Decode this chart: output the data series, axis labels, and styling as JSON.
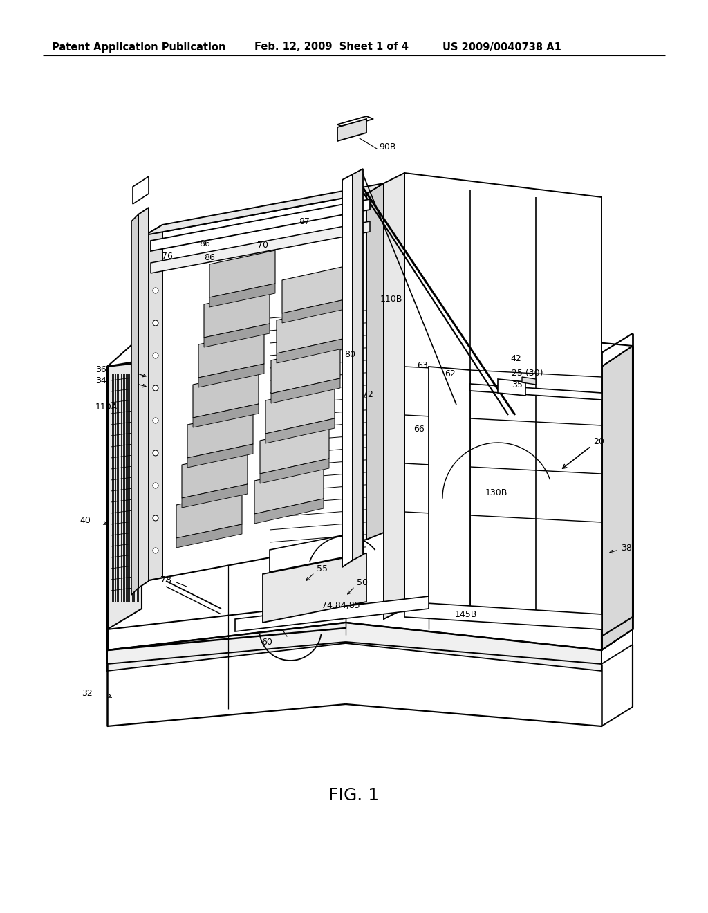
{
  "bg": "#ffffff",
  "header_left": "Patent Application Publication",
  "header_mid": "Feb. 12, 2009  Sheet 1 of 4",
  "header_right": "US 2009/0040738 A1",
  "fig_label": "FIG. 1",
  "lc": "black",
  "lw_main": 1.4,
  "lw_thin": 0.8,
  "lw_thick": 2.0
}
